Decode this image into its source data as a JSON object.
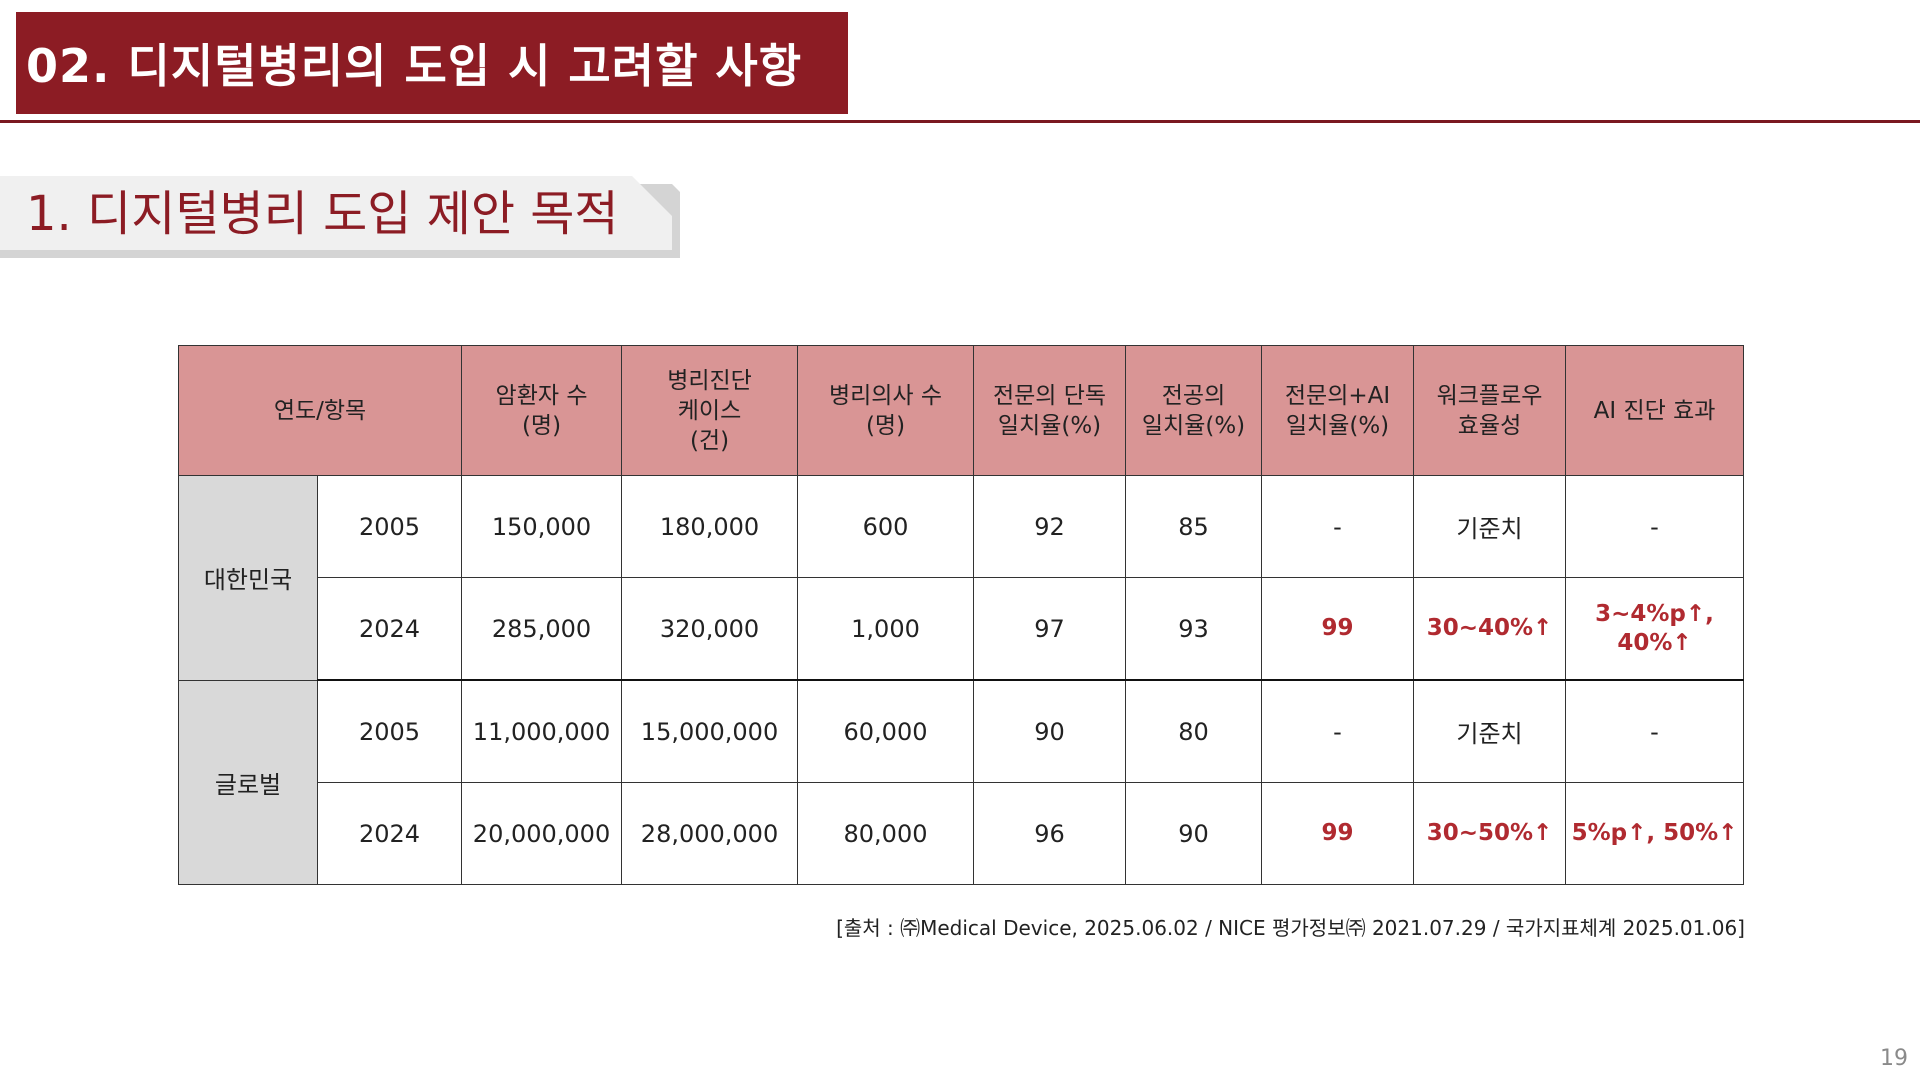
{
  "header": {
    "title": "02. 디지털병리의 도입 시 고려할 사항"
  },
  "section": {
    "title": "1. 디지털병리 도입 제안 목적"
  },
  "table": {
    "headers": {
      "category": "연도/항목",
      "cancer_patients": [
        "암환자 수",
        "(명)"
      ],
      "pathology_cases": [
        "병리진단",
        "케이스",
        "(건)"
      ],
      "pathologists": [
        "병리의사 수",
        "(명)"
      ],
      "expert_agreement": [
        "전문의 단독",
        "일치율(%)"
      ],
      "resident_agreement": [
        "전공의",
        "일치율(%)"
      ],
      "expert_ai_agreement": [
        "전문의+AI",
        "일치율(%)"
      ],
      "workflow": [
        "워크플로우",
        "효율성"
      ],
      "ai_effect": "AI 진단 효과"
    },
    "groups": [
      {
        "name": "대한민국",
        "rows": [
          {
            "year": "2005",
            "cancer_patients": "150,000",
            "pathology_cases": "180,000",
            "pathologists": "600",
            "expert_agreement": "92",
            "resident_agreement": "85",
            "expert_ai_agreement": "-",
            "workflow": "기준치",
            "ai_effect": "-"
          },
          {
            "year": "2024",
            "cancer_patients": "285,000",
            "pathology_cases": "320,000",
            "pathologists": "1,000",
            "expert_agreement": "97",
            "resident_agreement": "93",
            "expert_ai_agreement": "99",
            "workflow": "30~40%↑",
            "ai_effect": "3~4%p↑, 40%↑"
          }
        ]
      },
      {
        "name": "글로벌",
        "rows": [
          {
            "year": "2005",
            "cancer_patients": "11,000,000",
            "pathology_cases": "15,000,000",
            "pathologists": "60,000",
            "expert_agreement": "90",
            "resident_agreement": "80",
            "expert_ai_agreement": "-",
            "workflow": "기준치",
            "ai_effect": "-"
          },
          {
            "year": "2024",
            "cancer_patients": "20,000,000",
            "pathology_cases": "28,000,000",
            "pathologists": "80,000",
            "expert_agreement": "96",
            "resident_agreement": "90",
            "expert_ai_agreement": "99",
            "workflow": "30~50%↑",
            "ai_effect": "5%p↑, 50%↑"
          }
        ]
      }
    ]
  },
  "source_note": "[출처 : ㈜Medical Device, 2025.06.02 / NICE 평가정보㈜ 2021.07.29 / 국가지표체계 2025.01.06]",
  "page_number": "19",
  "colors": {
    "brand": "#8c1c24",
    "header_cell": "#d99595",
    "group_cell": "#d9d9d9",
    "highlight_text": "#b02a30"
  }
}
